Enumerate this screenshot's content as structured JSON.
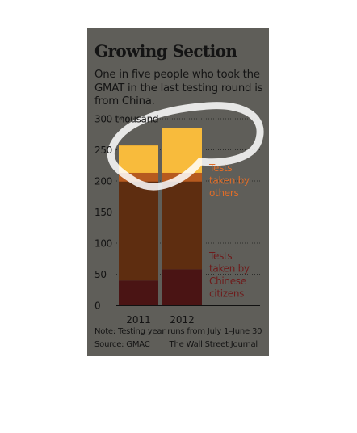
{
  "chart_data": {
    "type": "bar",
    "stacked": true,
    "title": "Growing Section",
    "subtitle": "One in five people who took the GMAT in the last testing round is from China.",
    "categories": [
      "2011",
      "2012"
    ],
    "series": [
      {
        "name": "Tests taken by Chinese citizens",
        "values": [
          40,
          58
        ],
        "color": "#4a1414"
      },
      {
        "name": "Tests taken by others",
        "values": [
          217,
          227
        ],
        "color": "#5e2d10"
      }
    ],
    "highlight_color": "#f8bb3c",
    "others_label_color": "#e06d28",
    "chinese_label_color": "#6e1b1b",
    "ylim": [
      0,
      300
    ],
    "yticks": [
      0,
      50,
      100,
      150,
      200,
      250,
      300
    ],
    "ytick_labels": [
      "0",
      "50",
      "100",
      "150",
      "200",
      "250",
      "300 thousand"
    ],
    "grid": "horizontal dotted",
    "legend": "right, as direct labels",
    "note": "Note: Testing year runs from July 1–June 30",
    "source": "Source: GMAC",
    "credit": "The Wall Street Journal"
  }
}
